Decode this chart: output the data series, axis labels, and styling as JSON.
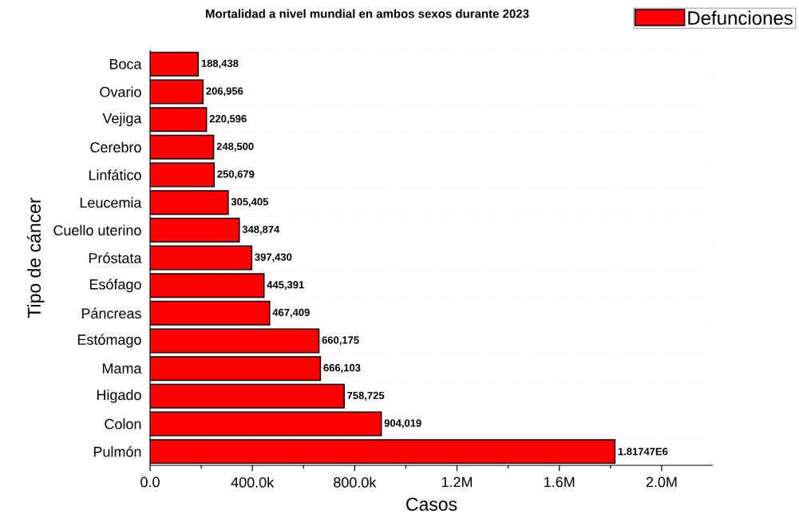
{
  "chart_data": {
    "type": "bar",
    "orientation": "horizontal",
    "title": "Mortalidad a nivel mundial en ambos sexos durante 2023",
    "xlabel": "Casos",
    "ylabel": "Tipo de cáncer",
    "categories": [
      "Boca",
      "Ovario",
      "Vejiga",
      "Cerebro",
      "Linfático",
      "Leucemia",
      "Cuello uterino",
      "Próstata",
      "Esófago",
      "Páncreas",
      "Estómago",
      "Mama",
      "Higado",
      "Colon",
      "Pulmón"
    ],
    "series": [
      {
        "name": "Defunciones",
        "color": "#ff0000",
        "values": [
          188438,
          206956,
          220596,
          248500,
          250679,
          305405,
          348874,
          397430,
          445391,
          467409,
          660175,
          666103,
          758725,
          904019,
          1817470
        ],
        "value_labels": [
          "188,438",
          "206,956",
          "220,596",
          "248,500",
          "250,679",
          "305,405",
          "348,874",
          "397,430",
          "445,391",
          "467,409",
          "660,175",
          "666,103",
          "758,725",
          "904,019",
          "1.81747E6"
        ]
      }
    ],
    "xlim": [
      0,
      2200000
    ],
    "xticks": [
      {
        "value": 0,
        "label": "0.0"
      },
      {
        "value": 400000,
        "label": "400.0k"
      },
      {
        "value": 800000,
        "label": "800.0k"
      },
      {
        "value": 1200000,
        "label": "1.2M"
      },
      {
        "value": 1600000,
        "label": "1.6M"
      },
      {
        "value": 2000000,
        "label": "2.0M"
      }
    ],
    "grid": "y",
    "legend": "top right"
  }
}
